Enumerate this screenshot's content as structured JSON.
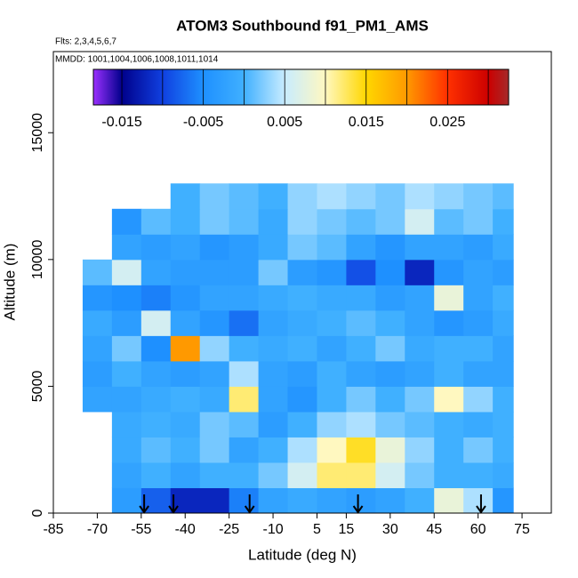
{
  "chart_data": {
    "type": "heatmap",
    "title": "ATOM3 Southbound f91_PM1_AMS",
    "annotations": [
      "Flts: 2,3,4,5,6,7",
      "MMDD: 1001,1004,1006,1008,1011,1014"
    ],
    "x_label": "Latitude (deg N)",
    "y_label": "Altitude (m)",
    "xlim": [
      -85,
      85
    ],
    "xticks": [
      -85,
      -70,
      -55,
      -40,
      -25,
      -10,
      5,
      15,
      30,
      45,
      60,
      75
    ],
    "ylim": [
      0,
      18200
    ],
    "yticks": [
      0,
      5000,
      10000,
      15000
    ],
    "x_edges": [
      -75,
      -65,
      -55,
      -45,
      -35,
      -25,
      -15,
      -5,
      5,
      15,
      25,
      35,
      45,
      55,
      65,
      72
    ],
    "y_edges": [
      0,
      1000,
      2000,
      3000,
      4000,
      5000,
      6000,
      7000,
      8000,
      9000,
      10000,
      11000,
      12000,
      13000
    ],
    "z": [
      [
        null,
        -0.003,
        -0.008,
        -0.012,
        -0.012,
        -0.006,
        -0.002,
        -0.001,
        -0.002,
        -0.003,
        -0.002,
        0,
        0.008,
        0.004,
        -0.004
      ],
      [
        null,
        -0.002,
        0,
        -0.002,
        0,
        0,
        0.002,
        0.006,
        0.012,
        0.012,
        0.006,
        0.002,
        0,
        0,
        -0.001
      ],
      [
        null,
        -0.001,
        0.001,
        0,
        0.002,
        -0.002,
        0,
        0.004,
        0.01,
        0.014,
        0.008,
        0.003,
        0,
        0.002,
        0
      ],
      [
        null,
        -0.001,
        0,
        -0.001,
        0.002,
        0.001,
        -0.003,
        0,
        0.003,
        0.004,
        0.002,
        0.001,
        0,
        -0.001,
        0
      ],
      [
        -0.002,
        -0.002,
        -0.001,
        0,
        -0.001,
        0.012,
        -0.002,
        -0.004,
        0,
        0.002,
        0,
        0.002,
        0.01,
        0.003,
        0
      ],
      [
        -0.003,
        0,
        -0.002,
        -0.003,
        -0.002,
        0.004,
        -0.002,
        -0.003,
        0,
        -0.002,
        -0.003,
        -0.002,
        0,
        -0.002,
        -0.002
      ],
      [
        -0.002,
        0.002,
        -0.005,
        0.02,
        0.003,
        0,
        -0.001,
        0,
        -0.002,
        0,
        0.002,
        -0.001,
        0,
        0,
        -0.002
      ],
      [
        -0.001,
        -0.003,
        0.006,
        -0.002,
        -0.004,
        -0.007,
        -0.002,
        -0.001,
        0,
        0.001,
        0,
        -0.002,
        -0.004,
        -0.003,
        -0.001
      ],
      [
        -0.004,
        -0.005,
        -0.006,
        -0.004,
        -0.002,
        -0.002,
        -0.001,
        0,
        -0.001,
        -0.001,
        -0.003,
        -0.002,
        0.008,
        -0.002,
        0
      ],
      [
        0.001,
        0.006,
        -0.002,
        -0.003,
        -0.003,
        -0.003,
        0.002,
        -0.003,
        -0.004,
        -0.009,
        -0.005,
        -0.012,
        -0.004,
        -0.002,
        -0.003
      ],
      [
        null,
        -0.002,
        -0.003,
        -0.002,
        -0.004,
        -0.003,
        -0.001,
        0.002,
        0.001,
        -0.002,
        -0.004,
        -0.002,
        -0.002,
        -0.003,
        -0.001
      ],
      [
        null,
        -0.004,
        0.001,
        0,
        0.002,
        0.001,
        -0.001,
        0.003,
        0.002,
        0.001,
        0.002,
        0.006,
        0.001,
        0.002,
        0
      ],
      [
        null,
        null,
        null,
        0,
        0.002,
        0.001,
        0,
        0.003,
        0.004,
        0.003,
        0.002,
        0.004,
        0.003,
        0.002,
        0.001
      ]
    ],
    "colorbar": {
      "stops": [
        -0.0185,
        -0.015,
        -0.01,
        -0.005,
        0,
        0.005,
        0.01,
        0.015,
        0.02,
        0.025,
        0.03,
        0.0325
      ],
      "colors": [
        "#9b30ff",
        "#00008b",
        "#1040e0",
        "#1e90ff",
        "#40b0ff",
        "#c8ecff",
        "#fff8c0",
        "#ffd700",
        "#ff9900",
        "#ff3000",
        "#cc0000",
        "#a52a2a"
      ],
      "breaks": [
        -0.015,
        -0.01,
        -0.005,
        0,
        0.005,
        0.01,
        0.015,
        0.02,
        0.025,
        0.03
      ],
      "ticks": [
        -0.015,
        -0.005,
        0.005,
        0.015,
        0.025
      ]
    },
    "arrow_lats": [
      -54,
      -44,
      -18,
      19,
      61
    ]
  }
}
